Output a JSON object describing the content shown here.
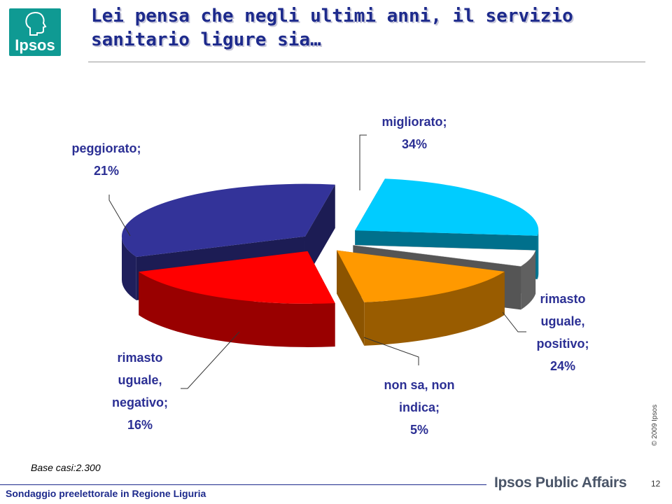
{
  "header": {
    "logo_text": "Ipsos",
    "title_line1": "Lei pensa che negli ultimi anni, il servizio",
    "title_line2": "sanitario ligure sia…"
  },
  "chart_data": {
    "type": "pie",
    "style": "3d-exploded",
    "slices": [
      {
        "label_lines": [
          "migliorato;"
        ],
        "percent_text": "34%",
        "value": 34,
        "color": "#333399"
      },
      {
        "label_lines": [
          "rimasto",
          "uguale,",
          "positivo;"
        ],
        "percent_text": "24%",
        "value": 24,
        "color": "#00ccff"
      },
      {
        "label_lines": [
          "non sa, non",
          "indica;"
        ],
        "percent_text": "5%",
        "value": 5,
        "color": "#ffffff"
      },
      {
        "label_lines": [
          "rimasto",
          "uguale,",
          "negativo;"
        ],
        "percent_text": "16%",
        "value": 16,
        "color": "#ff9900"
      },
      {
        "label_lines": [
          "peggiorato;"
        ],
        "percent_text": "21%",
        "value": 21,
        "color": "#ff0000"
      }
    ]
  },
  "footer": {
    "base_text": "Base casi:2.300",
    "copyright": "© 2009 Ipsos",
    "survey_name": "Sondaggio preelettorale in Regione Liguria",
    "brand": "Ipsos Public Affairs",
    "page_number": "12"
  }
}
